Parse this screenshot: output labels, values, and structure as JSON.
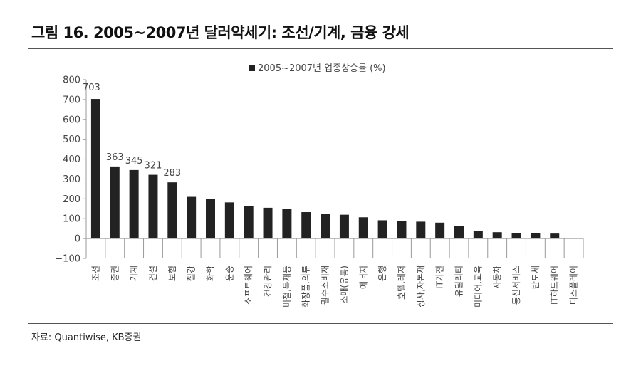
{
  "figure_title": "그림 16. 2005~2007년 달러약세기: 조선/기계, 금융 강세",
  "source": "자료: Quantiwise, KB증권",
  "chart_data": {
    "type": "bar",
    "legend_position": "top",
    "grid": false,
    "bar_color": "#222222",
    "ylim": [
      -100,
      800
    ],
    "yticks": [
      -100,
      0,
      100,
      200,
      300,
      400,
      500,
      600,
      700,
      800
    ],
    "series": [
      {
        "name": "2005~2007년 업종상승률 (%)",
        "values": [
          703,
          363,
          345,
          321,
          283,
          210,
          200,
          182,
          165,
          155,
          148,
          133,
          125,
          120,
          107,
          92,
          88,
          85,
          80,
          63,
          38,
          32,
          28,
          27,
          25,
          0
        ]
      }
    ],
    "categories": [
      "조선",
      "증권",
      "기계",
      "건설",
      "보험",
      "철강",
      "화학",
      "운송",
      "소프트웨어",
      "건강관리",
      "비철,목재등",
      "화장품,의류",
      "필수소비재",
      "소매(유통)",
      "에너지",
      "은행",
      "호텔,레저",
      "상사,자본재",
      "IT가전",
      "유틸리티",
      "미디어,교육",
      "자동차",
      "통신서비스",
      "반도체",
      "IT하드웨어",
      "디스플레이"
    ],
    "data_labels": [
      {
        "index": 0,
        "text": "703"
      },
      {
        "index": 1,
        "text": "363"
      },
      {
        "index": 2,
        "text": "345"
      },
      {
        "index": 3,
        "text": "321"
      },
      {
        "index": 4,
        "text": "283"
      }
    ]
  }
}
